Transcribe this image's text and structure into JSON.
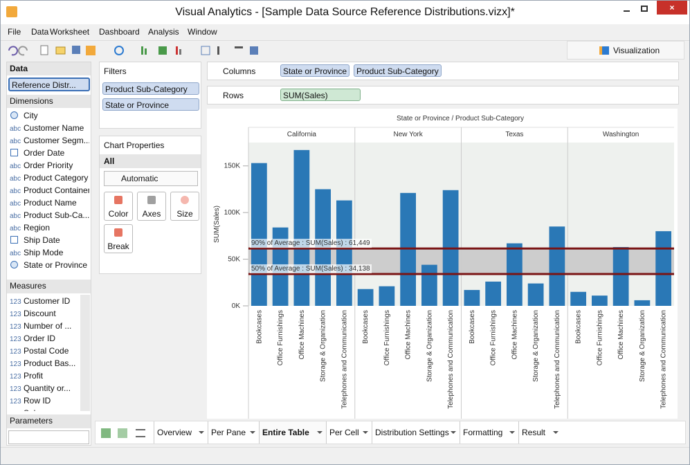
{
  "window": {
    "title": "Visual Analytics - [Sample Data Source Reference Distributions.vizx]*"
  },
  "menu": [
    "File",
    "Data",
    "Worksheet",
    "Dashboard",
    "Analysis",
    "Window"
  ],
  "toolbar": {
    "visualization": "Visualization"
  },
  "data_pane": {
    "title": "Data",
    "source": "Reference Distr...",
    "dimensions_title": "Dimensions",
    "dimensions": [
      {
        "kind": "geo",
        "name": "City"
      },
      {
        "icon": "abc",
        "name": "Customer Name"
      },
      {
        "icon": "abc",
        "name": "Customer Segm..."
      },
      {
        "kind": "date",
        "name": "Order Date"
      },
      {
        "icon": "abc",
        "name": "Order Priority"
      },
      {
        "icon": "abc",
        "name": "Product Category"
      },
      {
        "icon": "abc",
        "name": "Product Container"
      },
      {
        "icon": "abc",
        "name": "Product Name"
      },
      {
        "icon": "abc",
        "name": "Product Sub-Ca..."
      },
      {
        "icon": "abc",
        "name": "Region"
      },
      {
        "kind": "date",
        "name": "Ship Date"
      },
      {
        "icon": "abc",
        "name": "Ship Mode"
      },
      {
        "kind": "geo",
        "name": "State or Province"
      }
    ],
    "measures_title": "Measures",
    "measures": [
      {
        "icon": "123",
        "name": "Customer ID"
      },
      {
        "icon": "123",
        "name": "Discount"
      },
      {
        "icon": "123",
        "name": "Number of ..."
      },
      {
        "icon": "123",
        "name": "Order ID"
      },
      {
        "icon": "123",
        "name": "Postal Code"
      },
      {
        "icon": "123",
        "name": "Product Bas..."
      },
      {
        "icon": "123",
        "name": "Profit"
      },
      {
        "icon": "123",
        "name": "Quantity or..."
      },
      {
        "icon": "123",
        "name": "Row ID"
      },
      {
        "icon": "123",
        "name": "Sales"
      }
    ],
    "parameters_title": "Parameters"
  },
  "filters": {
    "title": "Filters",
    "items": [
      "Product Sub-Category",
      "State or Province"
    ]
  },
  "chart_properties": {
    "title": "Chart Properties",
    "scope": "All",
    "mark_type": "Automatic",
    "buttons": [
      "Color",
      "Axes",
      "Size",
      "Break"
    ]
  },
  "shelves": {
    "columns": {
      "label": "Columns",
      "pills": [
        "State or Province",
        "Product Sub-Category"
      ]
    },
    "rows": {
      "label": "Rows",
      "pills": [
        "SUM(Sales)"
      ]
    }
  },
  "tabs": {
    "items": [
      "Overview",
      "Per Pane",
      "Entire Table",
      "Per Cell",
      "Distribution Settings",
      "Formatting",
      "Result"
    ],
    "active": 2
  },
  "chart_data": {
    "type": "bar",
    "title": "State or Province / Product Sub-Category",
    "y_label": "SUM(Sales)",
    "categories": [
      "Bookcases",
      "Office Furnishings",
      "Office Machines",
      "Storage & Organization",
      "Telephones and Communication"
    ],
    "series": [
      {
        "name": "California",
        "color": "#2a78b6",
        "values": [
          153000,
          84000,
          167000,
          125000,
          113000
        ]
      },
      {
        "name": "New York",
        "color": "#2a78b6",
        "values": [
          18000,
          21000,
          121000,
          44000,
          124000
        ]
      },
      {
        "name": "Texas",
        "color": "#2a78b6",
        "values": [
          17000,
          26000,
          67000,
          24000,
          85000
        ]
      },
      {
        "name": "Washington",
        "color": "#2a78b6",
        "values": [
          15000,
          11000,
          63000,
          6000,
          80000
        ]
      }
    ],
    "ylim": [
      0,
      175000
    ],
    "yticks": [
      {
        "value": 0,
        "label": "0K"
      },
      {
        "value": 50000,
        "label": "50K"
      },
      {
        "value": 100000,
        "label": "100K"
      },
      {
        "value": 150000,
        "label": "150K"
      }
    ],
    "reference_lines": [
      {
        "value": 61449,
        "label": "90% of Average : SUM(Sales) : 61,449"
      },
      {
        "value": 34138,
        "label": "50% of Average : SUM(Sales) : 34,138"
      }
    ],
    "reference_color": "#7a1414",
    "band_color": "#c4c4c4"
  }
}
